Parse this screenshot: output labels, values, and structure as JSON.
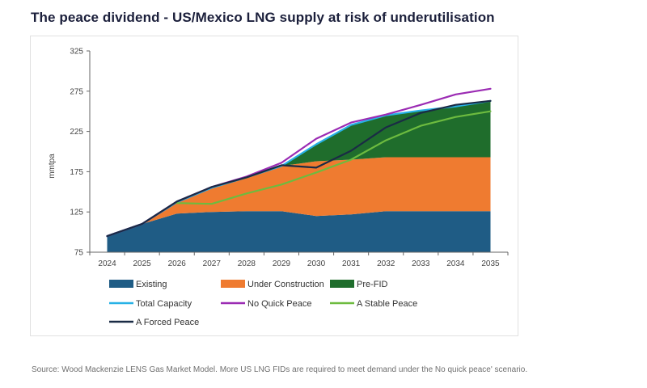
{
  "title": "The peace dividend - US/Mexico LNG supply at risk of underutilisation",
  "source": "Source: Wood Mackenzie LENS Gas Market Model. More US LNG FIDs are required to meet demand under the No quick peace' scenario.",
  "chart_data": {
    "type": "area",
    "x": [
      "2024",
      "2025",
      "2026",
      "2027",
      "2028",
      "2029",
      "2030",
      "2031",
      "2032",
      "2033",
      "2034",
      "2035"
    ],
    "ylabel": "mmtpa",
    "xlabel": "",
    "ylim": [
      75,
      325
    ],
    "yticks": [
      "325",
      "275",
      "225",
      "175",
      "125",
      "75"
    ],
    "yticks_values": [
      325,
      275,
      225,
      175,
      125,
      75
    ],
    "stacked_areas": [
      {
        "name": "Existing",
        "color": "#1f5c85",
        "values": [
          95,
          110,
          123,
          125,
          126,
          126,
          120,
          122,
          126,
          126,
          126,
          126
        ]
      },
      {
        "name": "Under Construction",
        "color": "#ef7b30",
        "values": [
          0,
          0,
          14,
          30,
          43,
          56,
          68,
          68,
          67,
          67,
          67,
          67
        ]
      },
      {
        "name": "Pre-FID",
        "color": "#1f6d2c",
        "values": [
          0,
          0,
          0,
          0,
          0,
          0,
          21,
          43,
          52,
          58,
          63,
          70
        ]
      }
    ],
    "lines": [
      {
        "name": "Total Capacity",
        "color": "#27b1e6",
        "values": [
          95,
          110,
          137,
          155,
          168,
          182,
          209,
          233,
          245,
          251,
          256,
          263
        ]
      },
      {
        "name": "No Quick Peace",
        "color": "#9b2bb3",
        "values": [
          95,
          110,
          138,
          156,
          169,
          186,
          216,
          236,
          246,
          258,
          271,
          278
        ]
      },
      {
        "name": "A Stable Peace",
        "color": "#6dbb3f",
        "values": [
          null,
          null,
          136,
          135,
          148,
          159,
          174,
          190,
          214,
          232,
          243,
          250
        ]
      },
      {
        "name": "A Forced Peace",
        "color": "#1a2b45",
        "values": [
          95,
          110,
          138,
          156,
          168,
          183,
          180,
          201,
          230,
          248,
          258,
          263
        ]
      }
    ],
    "legend": [
      {
        "label": "Existing",
        "kind": "box",
        "color": "#1f5c85"
      },
      {
        "label": "Under Construction",
        "kind": "box",
        "color": "#ef7b30"
      },
      {
        "label": "Pre-FID",
        "kind": "box",
        "color": "#1f6d2c"
      },
      {
        "label": "Total Capacity",
        "kind": "line",
        "color": "#27b1e6"
      },
      {
        "label": "No Quick Peace",
        "kind": "line",
        "color": "#9b2bb3"
      },
      {
        "label": "A Stable Peace",
        "kind": "line",
        "color": "#6dbb3f"
      },
      {
        "label": "A Forced Peace",
        "kind": "line",
        "color": "#1a2b45"
      }
    ],
    "legend_position": "bottom",
    "grid": false
  }
}
